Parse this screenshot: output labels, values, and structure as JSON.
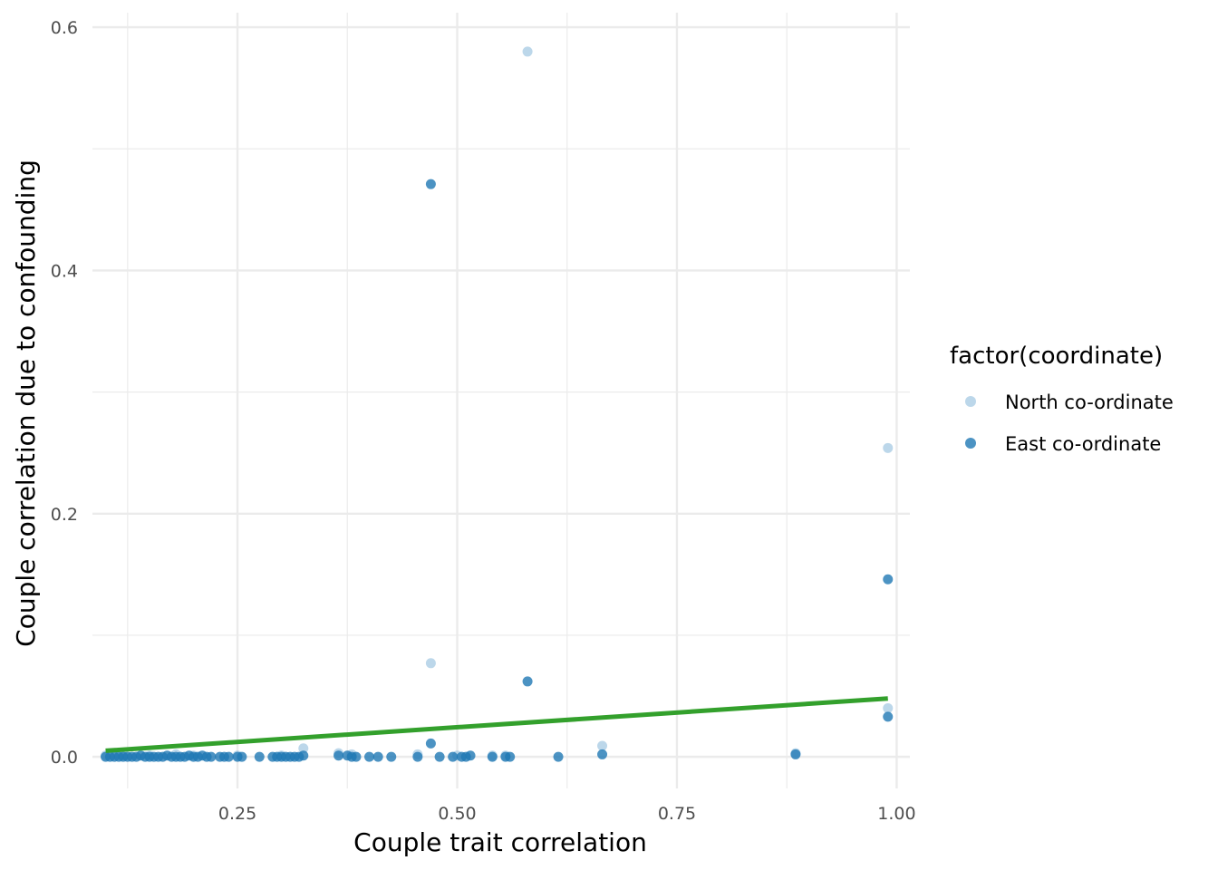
{
  "chart_data": {
    "type": "scatter",
    "title": "",
    "xlabel": "Couple trait correlation",
    "ylabel": "Couple correlation due to confounding",
    "xlim": [
      0.085,
      1.015
    ],
    "ylim": [
      -0.026,
      0.612
    ],
    "x_ticks": [
      0.25,
      0.5,
      0.75,
      1.0
    ],
    "x_tick_labels": [
      "0.25",
      "0.50",
      "0.75",
      "1.00"
    ],
    "x_minor_ticks": [
      0.125,
      0.375,
      0.625,
      0.875
    ],
    "y_ticks": [
      0.0,
      0.2,
      0.4,
      0.6
    ],
    "y_tick_labels": [
      "0.0",
      "0.2",
      "0.4",
      "0.6"
    ],
    "y_minor_ticks": [
      0.1,
      0.3,
      0.5
    ],
    "grid": true,
    "legend": {
      "title": "factor(coordinate)",
      "position": "right",
      "entries": [
        "North co-ordinate",
        "East co-ordinate"
      ]
    },
    "colors": {
      "North co-ordinate": "#a6cae3",
      "East co-ordinate": "#1f78b4",
      "trend": "#33a02c",
      "grid": "#ebebeb"
    },
    "trend_line": {
      "x": [
        0.1,
        0.99
      ],
      "y": [
        0.005,
        0.048
      ]
    },
    "series": [
      {
        "name": "North co-ordinate",
        "points": [
          [
            0.58,
            0.58
          ],
          [
            0.99,
            0.254
          ],
          [
            0.47,
            0.077
          ],
          [
            0.99,
            0.04
          ],
          [
            0.665,
            0.009
          ],
          [
            0.325,
            0.007
          ],
          [
            0.885,
            0.003
          ],
          [
            0.365,
            0.003
          ],
          [
            0.455,
            0.002
          ],
          [
            0.1,
            0.001
          ],
          [
            0.12,
            0.001
          ],
          [
            0.15,
            0.001
          ],
          [
            0.18,
            0.002
          ],
          [
            0.2,
            0.001
          ],
          [
            0.25,
            0.001
          ],
          [
            0.3,
            0.001
          ],
          [
            0.38,
            0.002
          ],
          [
            0.5,
            0.001
          ],
          [
            0.54,
            0.001
          ],
          [
            0.555,
            0.001
          ]
        ]
      },
      {
        "name": "East co-ordinate",
        "points": [
          [
            0.47,
            0.471
          ],
          [
            0.99,
            0.146
          ],
          [
            0.58,
            0.062
          ],
          [
            0.99,
            0.033
          ],
          [
            0.47,
            0.011
          ],
          [
            0.665,
            0.002
          ],
          [
            0.885,
            0.002
          ],
          [
            0.1,
            0.0
          ],
          [
            0.105,
            0.0
          ],
          [
            0.11,
            0.0
          ],
          [
            0.115,
            0.0
          ],
          [
            0.12,
            0.0
          ],
          [
            0.125,
            0.0
          ],
          [
            0.13,
            0.0
          ],
          [
            0.135,
            0.0
          ],
          [
            0.14,
            0.001
          ],
          [
            0.145,
            0.0
          ],
          [
            0.15,
            0.0
          ],
          [
            0.155,
            0.0
          ],
          [
            0.16,
            0.0
          ],
          [
            0.165,
            0.0
          ],
          [
            0.17,
            0.001
          ],
          [
            0.175,
            0.0
          ],
          [
            0.18,
            0.0
          ],
          [
            0.185,
            0.0
          ],
          [
            0.19,
            0.0
          ],
          [
            0.195,
            0.001
          ],
          [
            0.2,
            0.0
          ],
          [
            0.205,
            0.0
          ],
          [
            0.21,
            0.001
          ],
          [
            0.215,
            0.0
          ],
          [
            0.22,
            0.0
          ],
          [
            0.23,
            0.0
          ],
          [
            0.235,
            0.0
          ],
          [
            0.24,
            0.0
          ],
          [
            0.25,
            0.0
          ],
          [
            0.255,
            0.0
          ],
          [
            0.275,
            0.0
          ],
          [
            0.29,
            0.0
          ],
          [
            0.295,
            0.0
          ],
          [
            0.3,
            0.0
          ],
          [
            0.305,
            0.0
          ],
          [
            0.31,
            0.0
          ],
          [
            0.315,
            0.0
          ],
          [
            0.32,
            0.0
          ],
          [
            0.325,
            0.001
          ],
          [
            0.365,
            0.001
          ],
          [
            0.375,
            0.001
          ],
          [
            0.38,
            0.0
          ],
          [
            0.385,
            0.0
          ],
          [
            0.4,
            0.0
          ],
          [
            0.41,
            0.0
          ],
          [
            0.425,
            0.0
          ],
          [
            0.455,
            0.0
          ],
          [
            0.48,
            0.0
          ],
          [
            0.495,
            0.0
          ],
          [
            0.505,
            0.0
          ],
          [
            0.51,
            0.0
          ],
          [
            0.515,
            0.001
          ],
          [
            0.54,
            0.0
          ],
          [
            0.555,
            0.0
          ],
          [
            0.56,
            0.0
          ],
          [
            0.615,
            0.0
          ]
        ]
      }
    ]
  }
}
